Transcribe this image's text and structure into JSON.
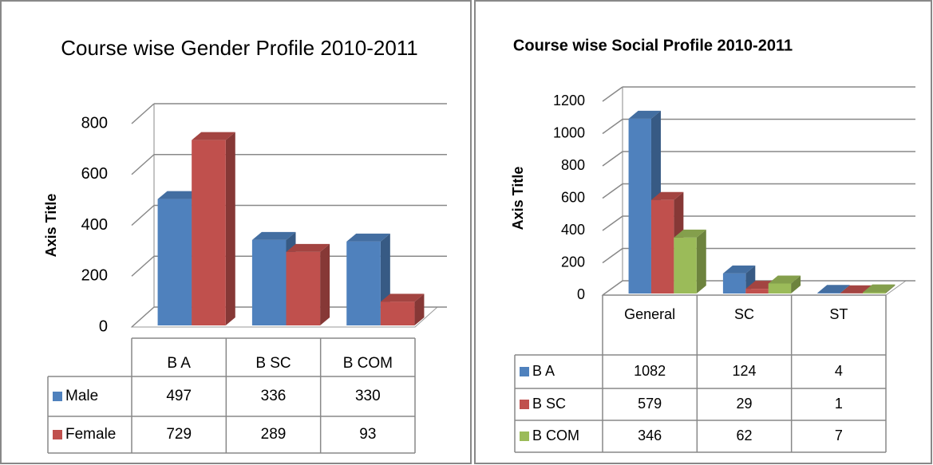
{
  "chart_data": [
    {
      "type": "bar",
      "title": "Course wise Gender Profile 2010-2011",
      "y_label": "Axis Title",
      "categories": [
        "B A",
        "B SC",
        "B COM"
      ],
      "series": [
        {
          "name": "Male",
          "color": "#4f81bd",
          "values": [
            497,
            336,
            330
          ]
        },
        {
          "name": "Female",
          "color": "#c0504d",
          "values": [
            729,
            289,
            93
          ]
        }
      ],
      "ylim": [
        0,
        800
      ],
      "yticks": [
        0,
        200,
        400,
        600,
        800
      ],
      "grid": true
    },
    {
      "type": "bar",
      "title": "Course wise Social Profile 2010-2011",
      "y_label": "Axis Title",
      "categories": [
        "General",
        "SC",
        "ST"
      ],
      "series": [
        {
          "name": "B A",
          "color": "#4f81bd",
          "values": [
            1082,
            124,
            4
          ]
        },
        {
          "name": "B SC",
          "color": "#c0504d",
          "values": [
            579,
            29,
            1
          ]
        },
        {
          "name": "B COM",
          "color": "#9bbb59",
          "values": [
            346,
            62,
            7
          ]
        }
      ],
      "ylim": [
        0,
        1200
      ],
      "yticks": [
        0,
        200,
        400,
        600,
        800,
        1000,
        1200
      ],
      "grid": true
    }
  ]
}
